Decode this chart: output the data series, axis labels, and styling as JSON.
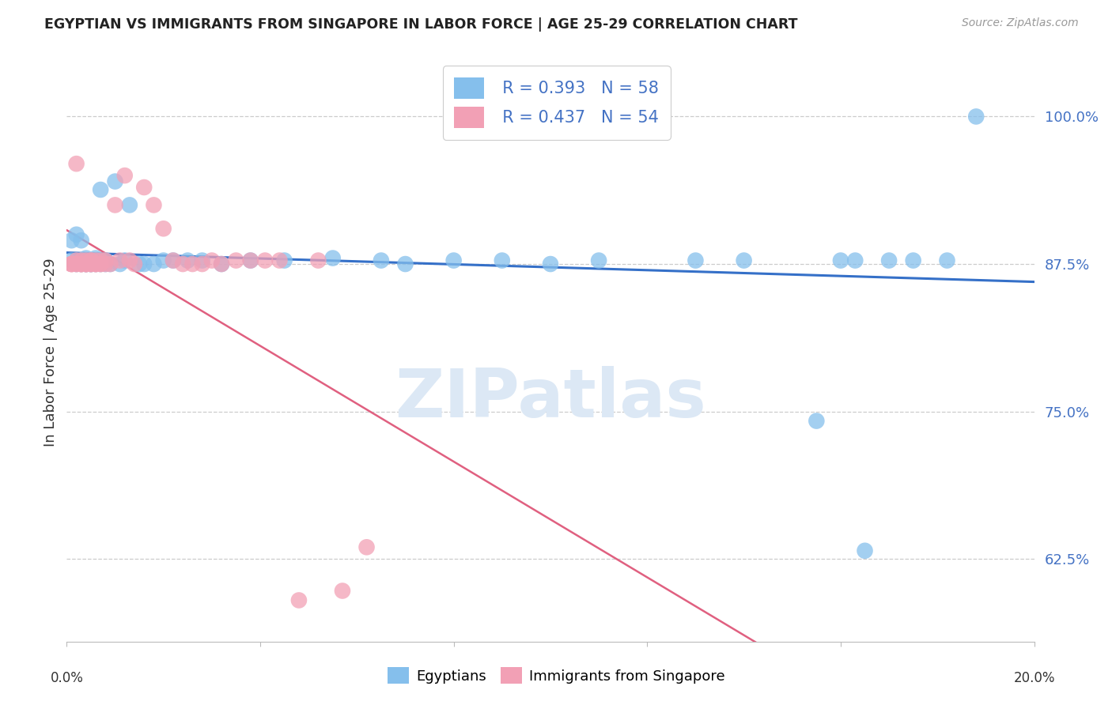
{
  "title": "EGYPTIAN VS IMMIGRANTS FROM SINGAPORE IN LABOR FORCE | AGE 25-29 CORRELATION CHART",
  "source": "Source: ZipAtlas.com",
  "ylabel": "In Labor Force | Age 25-29",
  "ytick_values": [
    0.625,
    0.75,
    0.875,
    1.0
  ],
  "ytick_labels": [
    "62.5%",
    "75.0%",
    "87.5%",
    "100.0%"
  ],
  "xlim": [
    0.0,
    0.2
  ],
  "ylim": [
    0.555,
    1.045
  ],
  "legend_blue_r": "R = 0.393",
  "legend_blue_n": "N = 58",
  "legend_pink_r": "R = 0.437",
  "legend_pink_n": "N = 54",
  "blue_color": "#85bfec",
  "pink_color": "#f2a0b5",
  "blue_line_color": "#3570c8",
  "pink_line_color": "#e06080",
  "watermark": "ZIPatlas",
  "blue_x": [
    0.001,
    0.001,
    0.002,
    0.002,
    0.002,
    0.003,
    0.003,
    0.003,
    0.003,
    0.004,
    0.004,
    0.004,
    0.004,
    0.005,
    0.005,
    0.005,
    0.005,
    0.006,
    0.006,
    0.006,
    0.007,
    0.007,
    0.007,
    0.008,
    0.008,
    0.009,
    0.01,
    0.011,
    0.012,
    0.013,
    0.015,
    0.016,
    0.018,
    0.02,
    0.022,
    0.025,
    0.028,
    0.032,
    0.038,
    0.045,
    0.055,
    0.065,
    0.07,
    0.08,
    0.09,
    0.1,
    0.11,
    0.115,
    0.13,
    0.14,
    0.155,
    0.16,
    0.163,
    0.165,
    0.17,
    0.175,
    0.182,
    0.188
  ],
  "blue_y": [
    0.878,
    0.895,
    0.878,
    0.9,
    0.875,
    0.878,
    0.895,
    0.875,
    0.878,
    0.88,
    0.875,
    0.875,
    0.878,
    0.878,
    0.875,
    0.878,
    0.875,
    0.88,
    0.878,
    0.875,
    0.938,
    0.875,
    0.878,
    0.875,
    0.878,
    0.875,
    0.945,
    0.875,
    0.878,
    0.925,
    0.875,
    0.875,
    0.875,
    0.878,
    0.878,
    0.878,
    0.878,
    0.875,
    0.878,
    0.878,
    0.88,
    0.878,
    0.875,
    0.878,
    0.878,
    0.875,
    0.878,
    1.0,
    0.878,
    0.878,
    0.742,
    0.878,
    0.878,
    0.632,
    0.878,
    0.878,
    0.878,
    1.0
  ],
  "pink_x": [
    0.001,
    0.001,
    0.001,
    0.002,
    0.002,
    0.002,
    0.002,
    0.003,
    0.003,
    0.003,
    0.003,
    0.003,
    0.004,
    0.004,
    0.004,
    0.004,
    0.004,
    0.005,
    0.005,
    0.005,
    0.005,
    0.005,
    0.006,
    0.006,
    0.006,
    0.006,
    0.007,
    0.007,
    0.007,
    0.008,
    0.008,
    0.009,
    0.01,
    0.011,
    0.012,
    0.013,
    0.014,
    0.016,
    0.018,
    0.02,
    0.022,
    0.024,
    0.026,
    0.028,
    0.03,
    0.032,
    0.035,
    0.038,
    0.041,
    0.044,
    0.048,
    0.052,
    0.057,
    0.062
  ],
  "pink_y": [
    0.875,
    0.875,
    0.875,
    0.96,
    0.875,
    0.878,
    0.875,
    0.875,
    0.875,
    0.875,
    0.878,
    0.875,
    0.875,
    0.875,
    0.878,
    0.875,
    0.875,
    0.875,
    0.878,
    0.875,
    0.875,
    0.878,
    0.875,
    0.878,
    0.875,
    0.875,
    0.875,
    0.878,
    0.875,
    0.878,
    0.875,
    0.875,
    0.925,
    0.878,
    0.95,
    0.878,
    0.875,
    0.94,
    0.925,
    0.905,
    0.878,
    0.875,
    0.875,
    0.875,
    0.878,
    0.875,
    0.878,
    0.878,
    0.878,
    0.878,
    0.59,
    0.878,
    0.598,
    0.635
  ]
}
